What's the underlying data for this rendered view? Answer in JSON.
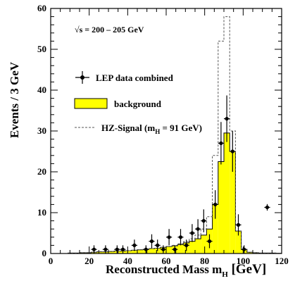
{
  "chart_data": {
    "type": "bar",
    "annotation": {
      "energy_prefix": "√s",
      "energy_value": " = 200 – 205 GeV"
    },
    "xlabel": {
      "main": "Reconstructed Mass m",
      "sub": "H",
      "unit": " [GeV]"
    },
    "ylabel": "Events / 3 GeV",
    "xlim": [
      0,
      120
    ],
    "ylim": [
      0,
      60
    ],
    "xticks": [
      0,
      20,
      40,
      60,
      80,
      100,
      120
    ],
    "yticks": [
      0,
      10,
      20,
      30,
      40,
      50,
      60
    ],
    "bin_width": 3,
    "legend": [
      {
        "key": "data",
        "label": "LEP data combined"
      },
      {
        "key": "background",
        "label": "background"
      },
      {
        "key": "signal",
        "label_main": "HZ-Signal (m",
        "label_sub": "H",
        "label_tail": " = 91 GeV)"
      }
    ],
    "colors": {
      "background_fill": "#ffff00",
      "axis": "#000000",
      "signal_line": "#555555"
    },
    "bin_edges": [
      9,
      12,
      15,
      18,
      21,
      24,
      27,
      30,
      33,
      36,
      39,
      42,
      45,
      48,
      51,
      54,
      57,
      60,
      63,
      66,
      69,
      72,
      75,
      78,
      81,
      84,
      87,
      90,
      93,
      96,
      99,
      102,
      105,
      108,
      111,
      114,
      117,
      120
    ],
    "series": [
      {
        "name": "background",
        "values": [
          0.1,
          0.1,
          0.2,
          0.2,
          0.3,
          0.4,
          0.4,
          0.5,
          0.6,
          0.6,
          0.7,
          0.8,
          0.9,
          1.0,
          1.2,
          1.3,
          1.5,
          1.7,
          1.9,
          2.2,
          2.6,
          3.0,
          3.6,
          4.5,
          6.0,
          12.0,
          22.5,
          29.5,
          25.0,
          5.5,
          1.0,
          0.3,
          0.2,
          0.1,
          0.1,
          0.1,
          0.05
        ]
      },
      {
        "name": "HZ-Signal",
        "values": [
          0.1,
          0.1,
          0.2,
          0.2,
          0.3,
          0.4,
          0.4,
          0.5,
          0.6,
          0.6,
          0.7,
          0.8,
          0.9,
          1.0,
          1.2,
          1.3,
          1.5,
          1.7,
          2.0,
          2.4,
          2.9,
          3.6,
          4.5,
          6.0,
          9.0,
          24.0,
          52.0,
          58.0,
          30.0,
          5.5,
          1.0,
          0.3,
          0.2,
          0.1,
          0.1,
          0.1,
          0.05
        ]
      }
    ],
    "data_points": [
      {
        "x": 22.5,
        "y": 1,
        "err": 1.0
      },
      {
        "x": 28.5,
        "y": 1,
        "err": 1.0
      },
      {
        "x": 34.5,
        "y": 1,
        "err": 1.0
      },
      {
        "x": 37.5,
        "y": 1,
        "err": 1.0
      },
      {
        "x": 43.5,
        "y": 2,
        "err": 1.4
      },
      {
        "x": 49.5,
        "y": 1,
        "err": 1.0
      },
      {
        "x": 52.5,
        "y": 3,
        "err": 1.7
      },
      {
        "x": 55.5,
        "y": 2,
        "err": 1.4
      },
      {
        "x": 58.5,
        "y": 1,
        "err": 1.0
      },
      {
        "x": 61.5,
        "y": 4,
        "err": 2.0
      },
      {
        "x": 64.5,
        "y": 1,
        "err": 1.0
      },
      {
        "x": 67.5,
        "y": 4,
        "err": 2.0
      },
      {
        "x": 70.5,
        "y": 2,
        "err": 1.4
      },
      {
        "x": 73.5,
        "y": 5,
        "err": 2.2
      },
      {
        "x": 76.5,
        "y": 6,
        "err": 2.4
      },
      {
        "x": 79.5,
        "y": 8,
        "err": 2.8
      },
      {
        "x": 82.5,
        "y": 3,
        "err": 1.7
      },
      {
        "x": 85.5,
        "y": 12,
        "err": 3.5
      },
      {
        "x": 88.5,
        "y": 27,
        "err": 5.2
      },
      {
        "x": 91.5,
        "y": 33,
        "err": 5.7
      },
      {
        "x": 94.5,
        "y": 25,
        "err": 5.0
      },
      {
        "x": 97.5,
        "y": 7,
        "err": 2.6
      },
      {
        "x": 100.5,
        "y": 1,
        "err": 1.0
      },
      {
        "x": 112.5,
        "y": 11.3,
        "err": 0.8
      }
    ]
  }
}
